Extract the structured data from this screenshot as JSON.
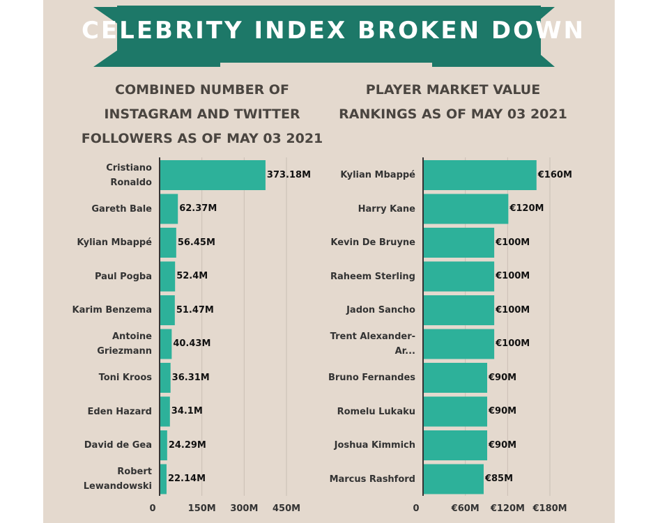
{
  "title": "CELEBRITY INDEX BROKEN DOWN",
  "colors": {
    "banner": "#1d7868",
    "bar": "#2db19a",
    "background": "#e4d9ce"
  },
  "chart_data": [
    {
      "type": "bar",
      "orientation": "horizontal",
      "title": "COMBINED NUMBER OF INSTAGRAM AND TWITTER FOLLOWERS AS OF MAY 03 2021",
      "categories": [
        "Cristiano Ronaldo",
        "Gareth Bale",
        "Kylian Mbappé",
        "Paul Pogba",
        "Karim Benzema",
        "Antoine Griezmann",
        "Toni Kroos",
        "Eden Hazard",
        "David de Gea",
        "Robert Lewandowski"
      ],
      "values": [
        373.18,
        62.37,
        56.45,
        52.4,
        51.47,
        40.43,
        36.31,
        34.1,
        24.29,
        22.14
      ],
      "value_labels": [
        "373.18M",
        "62.37M",
        "56.45M",
        "52.4M",
        "51.47M",
        "40.43M",
        "36.31M",
        "34.1M",
        "24.29M",
        "22.14M"
      ],
      "xlim": [
        0,
        450
      ],
      "xticks": [
        0,
        150,
        300,
        450
      ],
      "xtick_labels": [
        "0",
        "150M",
        "300M",
        "450M"
      ],
      "grid": true
    },
    {
      "type": "bar",
      "orientation": "horizontal",
      "title": "PLAYER MARKET VALUE RANKINGS AS OF MAY 03 2021",
      "categories": [
        "Kylian Mbappé",
        "Harry Kane",
        "Kevin De Bruyne",
        "Raheem Sterling",
        "Jadon Sancho",
        "Trent Alexander-Ar...",
        "Bruno Fernandes",
        "Romelu Lukaku",
        "Joshua Kimmich",
        "Marcus Rashford"
      ],
      "values": [
        160,
        120,
        100,
        100,
        100,
        100,
        90,
        90,
        90,
        85
      ],
      "value_labels": [
        "€160M",
        "€120M",
        "€100M",
        "€100M",
        "€100M",
        "€100M",
        "€90M",
        "€90M",
        "€90M",
        "€85M"
      ],
      "xlim": [
        0,
        180
      ],
      "xticks": [
        0,
        60,
        120,
        180
      ],
      "xtick_labels": [
        "0",
        "€60M",
        "€120M",
        "€180M"
      ],
      "grid": true
    }
  ]
}
